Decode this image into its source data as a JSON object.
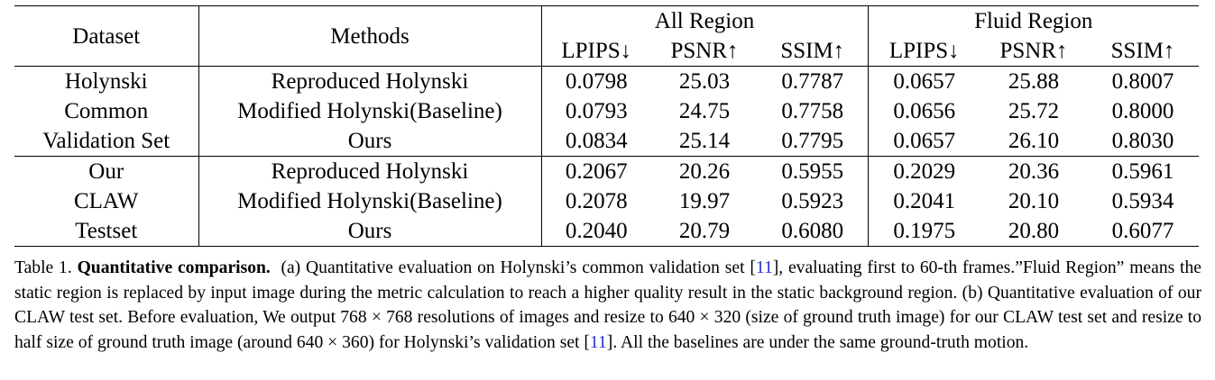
{
  "table": {
    "headers": {
      "dataset": "Dataset",
      "methods": "Methods",
      "all_region": "All Region",
      "fluid_region": "Fluid Region",
      "metrics": [
        "LPIPS↓",
        "PSNR↑",
        "SSIM↑",
        "LPIPS↓",
        "PSNR↑",
        "SSIM↑"
      ]
    },
    "groups": [
      {
        "dataset_lines": [
          "Holynski",
          "Common",
          "Validation Set"
        ],
        "rows": [
          {
            "method": "Reproduced Holynski",
            "values": [
              "0.0798",
              "25.03",
              "0.7787",
              "0.0657",
              "25.88",
              "0.8007"
            ],
            "bold": [
              false,
              false,
              false,
              false,
              false,
              false
            ]
          },
          {
            "method": "Modified Holynski(Baseline)",
            "values": [
              "0.0793",
              "24.75",
              "0.7758",
              "0.0656",
              "25.72",
              "0.8000"
            ],
            "bold": [
              true,
              false,
              false,
              true,
              false,
              false
            ]
          },
          {
            "method": "Ours",
            "values": [
              "0.0834",
              "25.14",
              "0.7795",
              "0.0657",
              "26.10",
              "0.8030"
            ],
            "bold": [
              false,
              true,
              true,
              false,
              true,
              true
            ]
          }
        ]
      },
      {
        "dataset_lines": [
          "Our",
          "CLAW",
          "Testset"
        ],
        "rows": [
          {
            "method": "Reproduced Holynski",
            "values": [
              "0.2067",
              "20.26",
              "0.5955",
              "0.2029",
              "20.36",
              "0.5961"
            ],
            "bold": [
              false,
              false,
              false,
              false,
              false,
              false
            ]
          },
          {
            "method": "Modified Holynski(Baseline)",
            "values": [
              "0.2078",
              "19.97",
              "0.5923",
              "0.2041",
              "20.10",
              "0.5934"
            ],
            "bold": [
              false,
              false,
              false,
              false,
              false,
              false
            ]
          },
          {
            "method": "Ours",
            "values": [
              "0.2040",
              "20.79",
              "0.6080",
              "0.1975",
              "20.80",
              "0.6077"
            ],
            "bold": [
              true,
              true,
              true,
              true,
              true,
              true
            ]
          }
        ]
      }
    ]
  },
  "caption": {
    "label": "Table 1.",
    "title": "Quantitative comparison.",
    "text_1": "(a) Quantitative evaluation on Holynski’s common validation set [",
    "cite_1": "11",
    "text_2": "], evaluating first to 60-th frames.”Fluid Region” means the static region is replaced by input image during the metric calculation to reach a higher quality result in the static background region. (b) Quantitative evaluation of our CLAW test set. Before evaluation, We output 768 × 768 resolutions of images and resize to 640 × 320 (size of ground truth image) for our CLAW test set and resize to half size of ground truth image (around 640 × 360) for Holynski’s validation set [",
    "cite_2": "11",
    "text_3": "]. All the baselines are under the same ground-truth motion."
  }
}
